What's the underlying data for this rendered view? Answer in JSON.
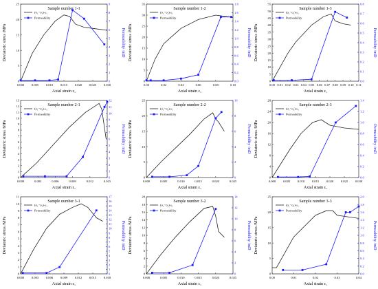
{
  "legend_labels": {
    "stress": "(σ₁−σ₃)-ε₁",
    "perm": "Permeability"
  },
  "axis_labels": {
    "x": "Axial strain ε₁",
    "y_left": "Deviatoric stress /MPa",
    "y_right": "Permeability /mD"
  },
  "colors": {
    "stress": "#222222",
    "perm": "#1a1aff",
    "frame": "#444444"
  },
  "chart_data": [
    {
      "type": "line",
      "title": "Sample number 1-1",
      "xlim": [
        0,
        0.03
      ],
      "xticks": [
        "0.000",
        "0.005",
        "0.010",
        "0.015",
        "0.020",
        "0.025",
        "0.030"
      ],
      "ylim": [
        0,
        25
      ],
      "yticks": [
        "0",
        "5",
        "10",
        "15",
        "20",
        "25"
      ],
      "y2lim": [
        0,
        9
      ],
      "y2ticks": [
        "0",
        "1",
        "2",
        "3",
        "4",
        "5",
        "6",
        "7",
        "8",
        "9"
      ],
      "stress": {
        "x": [
          0,
          0.004,
          0.008,
          0.012,
          0.015,
          0.017,
          0.019,
          0.022,
          0.026,
          0.03
        ],
        "y": [
          0,
          9,
          15,
          19.5,
          21.5,
          21,
          18.5,
          17.5,
          17,
          16.5
        ]
      },
      "perm": {
        "x": [
          0,
          0.005,
          0.01,
          0.013,
          0.018,
          0.022,
          0.029
        ],
        "y": [
          0.1,
          0.1,
          0.1,
          0.2,
          8.3,
          7.3,
          4.3
        ]
      }
    },
    {
      "type": "line",
      "title": "Sample number 1-2",
      "xlim": [
        0,
        0.1
      ],
      "xticks": [
        "0.00",
        "0.02",
        "0.04",
        "0.06",
        "0.08",
        "0.10"
      ],
      "ylim": [
        0,
        35
      ],
      "yticks": [
        "0",
        "5",
        "10",
        "15",
        "20",
        "25",
        "30",
        "35"
      ],
      "y2lim": [
        0,
        1.8
      ],
      "y2ticks": [
        "0.0",
        "0.2",
        "0.4",
        "0.6",
        "0.8",
        "1.0",
        "1.2",
        "1.4",
        "1.6",
        "1.8"
      ],
      "stress": {
        "x": [
          0,
          0.01,
          0.02,
          0.04,
          0.06,
          0.08,
          0.09,
          0.1
        ],
        "y": [
          0,
          10,
          17,
          24,
          28,
          30,
          29.5,
          29
        ]
      },
      "perm": {
        "x": [
          0,
          0.005,
          0.02,
          0.04,
          0.06,
          0.086,
          0.098
        ],
        "y": [
          0.02,
          0.02,
          0.02,
          0.06,
          0.15,
          1.5,
          1.5
        ]
      }
    },
    {
      "type": "line",
      "title": "Sample number 1-3",
      "xlim": [
        0,
        0.11
      ],
      "xticks": [
        "0.00",
        "0.01",
        "0.02",
        "0.03",
        "0.04",
        "0.05",
        "0.06",
        "0.07",
        "0.08",
        "0.09",
        "0.10",
        "0.11"
      ],
      "ylim": [
        0,
        55
      ],
      "yticks": [
        "0",
        "5",
        "10",
        "15",
        "20",
        "25",
        "30",
        "35",
        "40",
        "45",
        "50",
        "55"
      ],
      "y2lim": [
        0,
        0.8
      ],
      "y2ticks": [
        "0.0",
        "0.1",
        "0.2",
        "0.3",
        "0.4",
        "0.5",
        "0.6",
        "0.7",
        "0.8"
      ],
      "stress": {
        "x": [
          0,
          0.01,
          0.02,
          0.03,
          0.05,
          0.065,
          0.075,
          0.08,
          0.09,
          0.1
        ],
        "y": [
          0,
          10,
          20,
          28,
          40,
          46,
          48,
          43,
          41,
          40
        ]
      },
      "perm": {
        "x": [
          0.002,
          0.025,
          0.05,
          0.08,
          0.095
        ],
        "y": [
          0.01,
          0.01,
          0.02,
          0.72,
          0.66
        ]
      }
    },
    {
      "type": "line",
      "title": "Sample number 2-1",
      "xlim": [
        0,
        0.016
      ],
      "xticks": [
        "0.000",
        "0.003",
        "0.006",
        "0.009",
        "0.012",
        "0.015"
      ],
      "ylim": [
        0,
        13
      ],
      "yticks": [
        "0",
        "1",
        "2",
        "3",
        "4",
        "5",
        "6",
        "7",
        "8",
        "9",
        "10",
        "11",
        "12",
        "13"
      ],
      "y2lim": [
        0,
        12
      ],
      "y2ticks": [
        "0",
        "1",
        "2",
        "3",
        "4",
        "5",
        "6",
        "7",
        "8",
        "9",
        "10",
        "11",
        "12"
      ],
      "stress": {
        "x": [
          0,
          0.003,
          0.006,
          0.009,
          0.012,
          0.0145,
          0.015,
          0.0158
        ],
        "y": [
          0,
          2.5,
          5.5,
          8.5,
          11,
          12.5,
          11.5,
          6.5
        ]
      },
      "perm": {
        "x": [
          0.0005,
          0.0045,
          0.0085,
          0.0115,
          0.0155,
          0.016
        ],
        "y": [
          0.2,
          0.2,
          0.2,
          3.2,
          11,
          11.8
        ]
      }
    },
    {
      "type": "line",
      "title": "Sample number 2-2",
      "xlim": [
        0,
        0.03
      ],
      "xticks": [
        "0.000",
        "0.005",
        "0.010",
        "0.015",
        "0.020",
        "0.025"
      ],
      "ylim": [
        0,
        25
      ],
      "yticks": [
        "0",
        "5",
        "10",
        "15",
        "20",
        "25"
      ],
      "y2lim": [
        0,
        10
      ],
      "y2ticks": [
        "0",
        "2",
        "4",
        "6",
        "8",
        "10"
      ],
      "stress": {
        "x": [
          0,
          0.005,
          0.01,
          0.015,
          0.02,
          0.023,
          0.024,
          0.025,
          0.027
        ],
        "y": [
          0,
          5,
          9.5,
          14,
          19,
          21,
          19,
          18,
          15
        ]
      },
      "perm": {
        "x": [
          0.002,
          0.008,
          0.014,
          0.018,
          0.024,
          0.026
        ],
        "y": [
          0.1,
          0.1,
          0.3,
          1.5,
          7.7,
          8.5
        ]
      }
    },
    {
      "type": "line",
      "title": "Sample number 2-3",
      "xlim": [
        0,
        0.03
      ],
      "xticks": [
        "0.000",
        "0.005",
        "0.010",
        "0.015",
        "0.020",
        "0.025",
        "0.030"
      ],
      "ylim": [
        0,
        28
      ],
      "yticks": [
        "0",
        "4",
        "8",
        "12",
        "16",
        "20",
        "24",
        "28"
      ],
      "y2lim": [
        0,
        1.4
      ],
      "y2ticks": [
        "0.0",
        "0.2",
        "0.4",
        "0.6",
        "0.8",
        "1.0",
        "1.2",
        "1.4"
      ],
      "stress": {
        "x": [
          0,
          0.003,
          0.006,
          0.01,
          0.014,
          0.017,
          0.02,
          0.025,
          0.03
        ],
        "y": [
          0,
          5,
          10,
          16,
          20,
          21,
          19,
          18,
          17.5
        ]
      },
      "perm": {
        "x": [
          0.002,
          0.009,
          0.013,
          0.022,
          0.029
        ],
        "y": [
          0.01,
          0.01,
          0.02,
          1.0,
          1.3
        ]
      }
    },
    {
      "type": "line",
      "title": "Sample number 3-1",
      "xlim": [
        0,
        0.02
      ],
      "xticks": [
        "0.000",
        "0.003",
        "0.006",
        "0.009",
        "0.012",
        "0.015",
        "0.018"
      ],
      "ylim": [
        0,
        11
      ],
      "yticks": [
        "0",
        "1",
        "2",
        "3",
        "4",
        "5",
        "6",
        "7",
        "8",
        "9",
        "10",
        "11"
      ],
      "y2lim": [
        0,
        17
      ],
      "y2ticks": [
        "0",
        "1",
        "2",
        "3",
        "4",
        "5",
        "6",
        "7",
        "8",
        "9",
        "10",
        "11",
        "12",
        "13",
        "14",
        "15",
        "16",
        "17"
      ],
      "stress": {
        "x": [
          0,
          0.003,
          0.006,
          0.009,
          0.012,
          0.014,
          0.0155,
          0.0175,
          0.019
        ],
        "y": [
          0,
          3.5,
          6.5,
          8.5,
          9.5,
          10,
          9.5,
          8,
          7.5
        ]
      },
      "perm": {
        "x": [
          0.0005,
          0.006,
          0.009,
          0.0175
        ],
        "y": [
          0.2,
          0.2,
          1.5,
          14
        ]
      }
    },
    {
      "type": "line",
      "title": "Sample number 3-2",
      "xlim": [
        0,
        0.03
      ],
      "xticks": [
        "0.000",
        "0.005",
        "0.010",
        "0.015",
        "0.020",
        "0.025"
      ],
      "ylim": [
        0,
        20
      ],
      "yticks": [
        "0",
        "2",
        "4",
        "6",
        "8",
        "10",
        "12",
        "14",
        "16",
        "18",
        "20"
      ],
      "y2lim": [
        0,
        14
      ],
      "y2ticks": [
        "0",
        "2",
        "4",
        "6",
        "8",
        "10",
        "12",
        "14"
      ],
      "stress": {
        "x": [
          0,
          0.005,
          0.01,
          0.015,
          0.02,
          0.023,
          0.024,
          0.025,
          0.027
        ],
        "y": [
          0,
          5,
          9.5,
          13.5,
          17,
          17.5,
          15,
          11,
          9.5
        ]
      },
      "perm": {
        "x": [
          0.002,
          0.008,
          0.016,
          0.024
        ],
        "y": [
          0.2,
          0.2,
          1.6,
          11.8
        ]
      }
    },
    {
      "type": "line",
      "title": "Sample number 3-3",
      "xlim": [
        0,
        0.04
      ],
      "xticks": [
        "0.00",
        "0.01",
        "0.02",
        "0.03",
        "0.04"
      ],
      "ylim": [
        0,
        25
      ],
      "yticks": [
        "0",
        "5",
        "10",
        "15",
        "20",
        "25"
      ],
      "y2lim": [
        0,
        2.0
      ],
      "y2ticks": [
        "0.0",
        "0.2",
        "0.4",
        "0.6",
        "0.8",
        "1.0",
        "1.2",
        "1.4",
        "1.6",
        "1.8",
        "2.0"
      ],
      "stress": {
        "x": [
          0,
          0.002,
          0.01,
          0.02,
          0.025,
          0.028,
          0.03,
          0.035,
          0.04
        ],
        "y": [
          2,
          2,
          12,
          19,
          20.5,
          20.5,
          19,
          18.5,
          18
        ]
      },
      "perm": {
        "x": [
          0.005,
          0.014,
          0.025,
          0.034,
          0.036,
          0.04
        ],
        "y": [
          0.1,
          0.1,
          0.25,
          1.6,
          1.6,
          1.75
        ]
      }
    }
  ]
}
